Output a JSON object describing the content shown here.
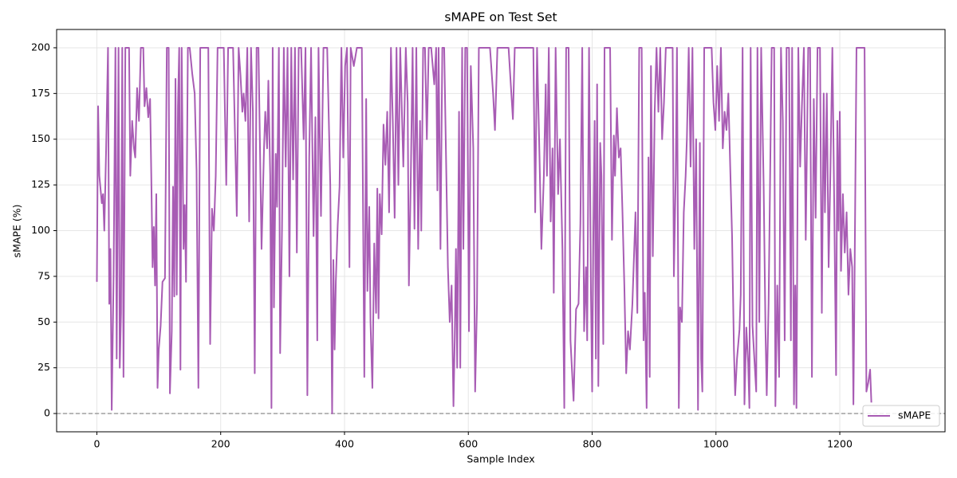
{
  "chart_data": {
    "type": "line",
    "title": "sMAPE on Test Set",
    "x_label": "Sample Index",
    "y_label": "sMAPE (%)",
    "xlim": [
      -65,
      1370
    ],
    "ylim": [
      -10,
      210
    ],
    "xticks": [
      0,
      200,
      400,
      600,
      800,
      1000,
      1200
    ],
    "yticks": [
      0,
      25,
      50,
      75,
      100,
      125,
      150,
      175,
      200
    ],
    "grid": true,
    "legend": "lower right",
    "reference_line": 0,
    "x": [
      0,
      2,
      4,
      8,
      10,
      12,
      15,
      18,
      20,
      22,
      24,
      27,
      30,
      32,
      35,
      37,
      39,
      41,
      43,
      46,
      52,
      54,
      57,
      60,
      62,
      65,
      68,
      71,
      75,
      77,
      80,
      83,
      86,
      88,
      90,
      92,
      94,
      96,
      98,
      100,
      103,
      106,
      110,
      113,
      116,
      118,
      121,
      123,
      125,
      127,
      129,
      131,
      133,
      135,
      137,
      140,
      142,
      144,
      147,
      150,
      154,
      158,
      161,
      164,
      167,
      175,
      180,
      183,
      186,
      189,
      192,
      195,
      205,
      209,
      212,
      220,
      226,
      229,
      232,
      235,
      237,
      240,
      243,
      246,
      249,
      252,
      255,
      258,
      261,
      266,
      270,
      272,
      275,
      277,
      280,
      282,
      284,
      286,
      289,
      291,
      294,
      296,
      299,
      302,
      305,
      308,
      311,
      314,
      317,
      320,
      323,
      326,
      330,
      334,
      337,
      340,
      343,
      346,
      350,
      353,
      356,
      358,
      362,
      366,
      372,
      377,
      380,
      382,
      384,
      386,
      389,
      392,
      395,
      398,
      401,
      404,
      408,
      410,
      415,
      420,
      428,
      432,
      435,
      437,
      440,
      442,
      445,
      448,
      451,
      453,
      455,
      457,
      460,
      463,
      466,
      469,
      472,
      475,
      478,
      481,
      484,
      487,
      490,
      495,
      499,
      502,
      504,
      507,
      510,
      513,
      516,
      519,
      522,
      524,
      527,
      530,
      533,
      536,
      540,
      545,
      548,
      550,
      552,
      555,
      558,
      561,
      564,
      567,
      570,
      573,
      576,
      578,
      580,
      582,
      585,
      587,
      590,
      592,
      595,
      598,
      601,
      604,
      608,
      611,
      614,
      617,
      625,
      635,
      640,
      643,
      647,
      655,
      665,
      672,
      675,
      690,
      705,
      708,
      711,
      715,
      718,
      722,
      725,
      727,
      730,
      733,
      736,
      738,
      741,
      745,
      748,
      752,
      755,
      758,
      762,
      765,
      768,
      770,
      774,
      778,
      781,
      784,
      787,
      790,
      792,
      795,
      798,
      800,
      802,
      804,
      806,
      808,
      810,
      813,
      815,
      818,
      820,
      824,
      829,
      832,
      835,
      837,
      840,
      843,
      846,
      849,
      852,
      855,
      858,
      861,
      865,
      868,
      870,
      873,
      876,
      880,
      883,
      885,
      888,
      891,
      893,
      895,
      898,
      901,
      904,
      907,
      910,
      913,
      916,
      919,
      925,
      930,
      932,
      935,
      937,
      940,
      942,
      945,
      948,
      951,
      953,
      956,
      959,
      962,
      965,
      968,
      971,
      974,
      976,
      978,
      981,
      985,
      993,
      996,
      999,
      1002,
      1005,
      1008,
      1011,
      1014,
      1017,
      1020,
      1023,
      1026,
      1029,
      1031,
      1034,
      1038,
      1040,
      1043,
      1046,
      1049,
      1052,
      1054,
      1056,
      1059,
      1062,
      1065,
      1067,
      1070,
      1073,
      1077,
      1080,
      1082,
      1085,
      1090,
      1094,
      1096,
      1099,
      1102,
      1105,
      1108,
      1111,
      1114,
      1118,
      1121,
      1123,
      1126,
      1128,
      1130,
      1133,
      1136,
      1139,
      1142,
      1145,
      1149,
      1152,
      1155,
      1158,
      1161,
      1164,
      1168,
      1171,
      1174,
      1176,
      1179,
      1182,
      1185,
      1188,
      1191,
      1194,
      1196,
      1198,
      1200,
      1202,
      1205,
      1208,
      1211,
      1214,
      1217,
      1220,
      1222,
      1224,
      1227,
      1240,
      1243,
      1246,
      1249,
      1251
    ],
    "series": [
      {
        "name": "sMAPE",
        "color": "#a85cb4",
        "values": [
          72,
          168,
          130,
          115,
          120,
          100,
          145,
          200,
          60,
          90,
          2,
          75,
          200,
          30,
          200,
          25,
          55,
          200,
          20,
          200,
          200,
          130,
          160,
          145,
          140,
          178,
          160,
          200,
          200,
          168,
          178,
          162,
          172,
          128,
          80,
          102,
          70,
          120,
          14,
          35,
          48,
          72,
          74,
          200,
          200,
          11,
          45,
          124,
          64,
          183,
          65,
          168,
          200,
          24,
          200,
          90,
          114,
          72,
          200,
          200,
          186,
          175,
          133,
          14,
          200,
          200,
          200,
          38,
          112,
          100,
          130,
          200,
          200,
          125,
          200,
          200,
          108,
          200,
          185,
          165,
          175,
          160,
          200,
          105,
          200,
          165,
          22,
          200,
          200,
          90,
          145,
          165,
          145,
          182,
          130,
          3,
          200,
          58,
          142,
          113,
          200,
          33,
          100,
          200,
          135,
          200,
          75,
          200,
          128,
          200,
          88,
          200,
          200,
          150,
          200,
          10,
          140,
          200,
          97,
          162,
          40,
          200,
          108,
          200,
          200,
          125,
          0,
          84,
          35,
          72,
          103,
          124,
          200,
          140,
          190,
          200,
          80,
          200,
          190,
          200,
          200,
          20,
          172,
          67,
          113,
          50,
          14,
          93,
          55,
          123,
          52,
          120,
          98,
          158,
          136,
          165,
          110,
          200,
          160,
          107,
          200,
          125,
          200,
          135,
          200,
          170,
          70,
          127,
          200,
          101,
          200,
          90,
          160,
          100,
          200,
          200,
          150,
          200,
          200,
          180,
          200,
          122,
          200,
          90,
          200,
          200,
          140,
          80,
          50,
          70,
          4,
          40,
          90,
          25,
          165,
          25,
          200,
          90,
          200,
          200,
          45,
          190,
          145,
          12,
          60,
          200,
          200,
          200,
          175,
          155,
          200,
          200,
          200,
          161,
          200,
          200,
          200,
          110,
          200,
          140,
          90,
          130,
          180,
          130,
          200,
          105,
          145,
          66,
          200,
          120,
          150,
          90,
          3,
          200,
          200,
          40,
          20,
          7,
          57,
          60,
          104,
          200,
          45,
          80,
          40,
          200,
          68,
          12,
          100,
          160,
          30,
          180,
          15,
          148,
          130,
          38,
          200,
          200,
          200,
          95,
          152,
          130,
          167,
          140,
          145,
          110,
          70,
          22,
          45,
          35,
          60,
          90,
          110,
          55,
          200,
          200,
          40,
          66,
          3,
          140,
          20,
          190,
          86,
          165,
          200,
          165,
          200,
          150,
          170,
          200,
          200,
          200,
          75,
          130,
          200,
          3,
          58,
          50,
          110,
          130,
          150,
          200,
          135,
          200,
          90,
          150,
          2,
          148,
          30,
          12,
          200,
          200,
          200,
          170,
          155,
          190,
          160,
          200,
          145,
          165,
          155,
          175,
          135,
          97,
          35,
          10,
          30,
          46,
          65,
          200,
          5,
          47,
          28,
          3,
          200,
          48,
          30,
          12,
          200,
          50,
          200,
          125,
          45,
          10,
          60,
          200,
          200,
          4,
          70,
          20,
          200,
          160,
          40,
          200,
          200,
          40,
          200,
          5,
          70,
          3,
          200,
          135,
          170,
          200,
          95,
          200,
          200,
          20,
          172,
          107,
          200,
          200,
          55,
          175,
          110,
          175,
          80,
          135,
          200,
          115,
          21,
          160,
          100,
          165,
          78,
          120,
          88,
          110,
          65,
          90,
          80,
          5,
          80,
          200,
          200,
          12,
          17,
          24,
          6
        ]
      }
    ]
  }
}
